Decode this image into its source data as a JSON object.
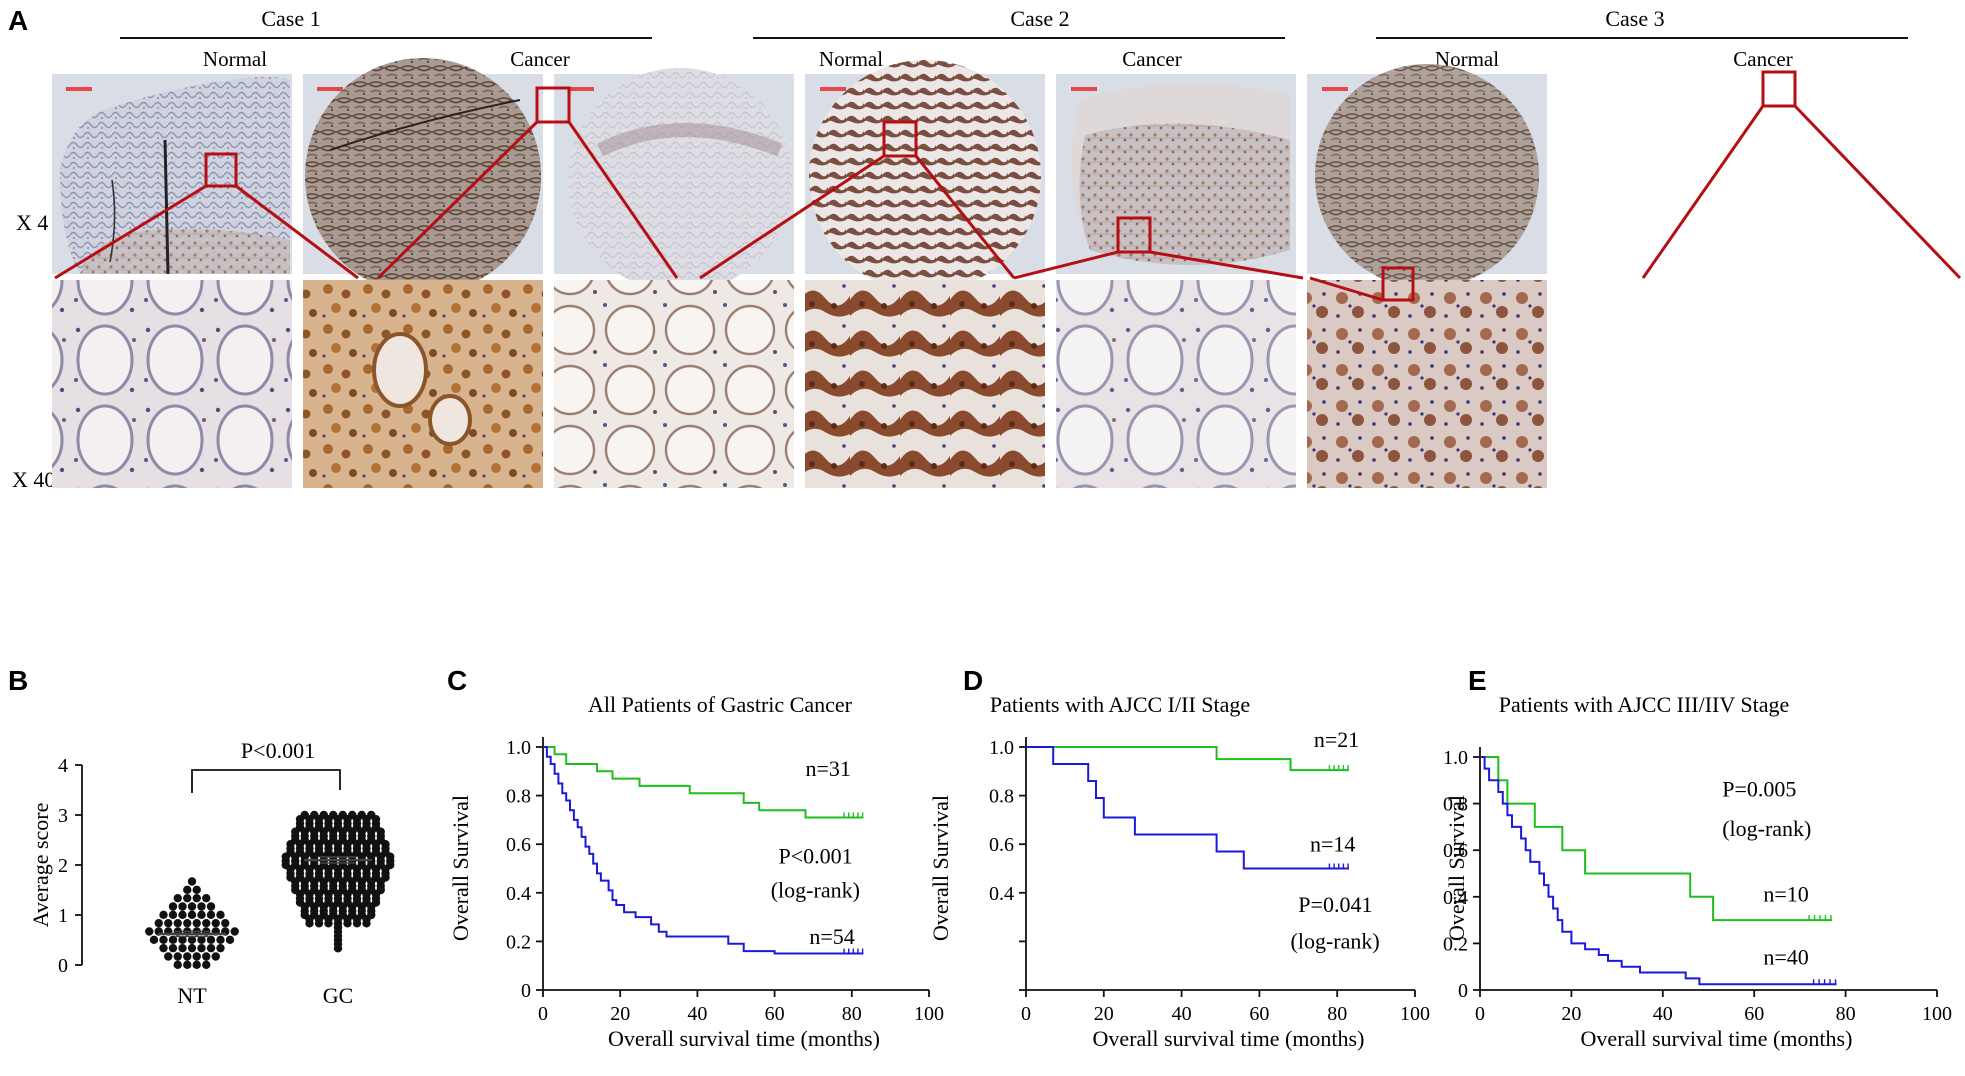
{
  "panelA": {
    "letter": "A",
    "cases": [
      {
        "title": "Case 1",
        "normal": "Normal",
        "cancer": "Cancer"
      },
      {
        "title": "Case  2",
        "normal": "Normal",
        "cancer": "Cancer"
      },
      {
        "title": "Case  3",
        "normal": "Normal",
        "cancer": "Cancer"
      }
    ],
    "mag_low": "X 4",
    "mag_high": "X 40",
    "colors": {
      "zoom_box": "#b50f14",
      "scale_bar": "#e8474a",
      "tissue_brown": "#8a5a3a",
      "tissue_blue": "#6b7a9e"
    }
  },
  "panelB": {
    "letter": "B",
    "pvalue": "P<0.001",
    "chart_data": {
      "type": "scatter",
      "categories": [
        "NT",
        "GC"
      ],
      "ylabel": "Average score",
      "ylim": [
        0,
        4
      ],
      "yticks": [
        "0",
        "1",
        "2",
        "3",
        "4"
      ],
      "mean": [
        0.62,
        2.1
      ],
      "sem": [
        0.05,
        0.06
      ],
      "NT_range": [
        0,
        1.67
      ],
      "GC_range": [
        0.33,
        3.0
      ]
    }
  },
  "survival": [
    {
      "letter": "C",
      "chart_data": {
        "type": "line",
        "title": "All Patients of Gastric Cancer",
        "xlabel": "Overall survival time (months)",
        "ylabel": "Overall Survival",
        "xlim": [
          0,
          100
        ],
        "ylim": [
          0,
          1.0
        ],
        "xticks": [
          "0",
          "20",
          "40",
          "60",
          "80",
          "100"
        ],
        "yticks": [
          "0",
          "0.2",
          "0.4",
          "0.6",
          "0.8",
          "1.0"
        ],
        "series": [
          {
            "color": "#1fbf1f",
            "label": "n=31",
            "points": [
              [
                0,
                1.0
              ],
              [
                3,
                1.0
              ],
              [
                3,
                0.97
              ],
              [
                6,
                0.97
              ],
              [
                6,
                0.93
              ],
              [
                14,
                0.93
              ],
              [
                14,
                0.9
              ],
              [
                18,
                0.9
              ],
              [
                18,
                0.87
              ],
              [
                25,
                0.87
              ],
              [
                25,
                0.84
              ],
              [
                38,
                0.84
              ],
              [
                38,
                0.81
              ],
              [
                52,
                0.81
              ],
              [
                52,
                0.77
              ],
              [
                56,
                0.77
              ],
              [
                56,
                0.74
              ],
              [
                68,
                0.74
              ],
              [
                68,
                0.71
              ],
              [
                83,
                0.71
              ]
            ]
          },
          {
            "color": "#1a1adb",
            "label": "n=54",
            "points": [
              [
                0,
                1.0
              ],
              [
                1,
                1.0
              ],
              [
                1,
                0.96
              ],
              [
                2,
                0.96
              ],
              [
                2,
                0.93
              ],
              [
                3,
                0.93
              ],
              [
                3,
                0.89
              ],
              [
                4,
                0.89
              ],
              [
                4,
                0.85
              ],
              [
                5,
                0.85
              ],
              [
                5,
                0.81
              ],
              [
                6,
                0.81
              ],
              [
                6,
                0.78
              ],
              [
                7,
                0.78
              ],
              [
                7,
                0.74
              ],
              [
                8,
                0.74
              ],
              [
                8,
                0.7
              ],
              [
                9,
                0.7
              ],
              [
                9,
                0.67
              ],
              [
                10,
                0.67
              ],
              [
                10,
                0.63
              ],
              [
                11,
                0.63
              ],
              [
                11,
                0.59
              ],
              [
                12,
                0.59
              ],
              [
                12,
                0.56
              ],
              [
                13,
                0.56
              ],
              [
                13,
                0.52
              ],
              [
                14,
                0.52
              ],
              [
                14,
                0.48
              ],
              [
                15,
                0.48
              ],
              [
                15,
                0.45
              ],
              [
                17,
                0.45
              ],
              [
                17,
                0.41
              ],
              [
                18,
                0.41
              ],
              [
                18,
                0.37
              ],
              [
                19,
                0.37
              ],
              [
                19,
                0.35
              ],
              [
                21,
                0.35
              ],
              [
                21,
                0.32
              ],
              [
                24,
                0.32
              ],
              [
                24,
                0.3
              ],
              [
                28,
                0.3
              ],
              [
                28,
                0.27
              ],
              [
                30,
                0.27
              ],
              [
                30,
                0.24
              ],
              [
                32,
                0.24
              ],
              [
                32,
                0.22
              ],
              [
                48,
                0.22
              ],
              [
                48,
                0.19
              ],
              [
                52,
                0.19
              ],
              [
                52,
                0.16
              ],
              [
                60,
                0.16
              ],
              [
                60,
                0.15
              ],
              [
                83,
                0.15
              ]
            ]
          }
        ],
        "annotations": [
          {
            "text": "n=31",
            "x": 68,
            "y": 0.88
          },
          {
            "text": "P<0.001",
            "x": 61,
            "y": 0.52
          },
          {
            "text": "(log-rank)",
            "x": 59,
            "y": 0.38
          },
          {
            "text": "n=54",
            "x": 69,
            "y": 0.19
          }
        ]
      }
    },
    {
      "letter": "D",
      "chart_data": {
        "type": "line",
        "title": "Patients with AJCC I/II Stage",
        "xlabel": "Overall survival time (months)",
        "ylabel": "Overall Survival",
        "xlim": [
          0,
          100
        ],
        "ylim": [
          0,
          1.0
        ],
        "xticks": [
          "0",
          "20",
          "40",
          "60",
          "80",
          "100"
        ],
        "yticks": [
          "0.4",
          "0.6",
          "0.8",
          "1.0"
        ],
        "series": [
          {
            "color": "#1fbf1f",
            "label": "n=21",
            "points": [
              [
                0,
                1.0
              ],
              [
                49,
                1.0
              ],
              [
                49,
                0.95
              ],
              [
                68,
                0.95
              ],
              [
                68,
                0.905
              ],
              [
                83,
                0.905
              ]
            ]
          },
          {
            "color": "#1a1adb",
            "label": "n=14",
            "points": [
              [
                0,
                1.0
              ],
              [
                7,
                1.0
              ],
              [
                7,
                0.93
              ],
              [
                16,
                0.93
              ],
              [
                16,
                0.86
              ],
              [
                18,
                0.86
              ],
              [
                18,
                0.79
              ],
              [
                20,
                0.79
              ],
              [
                20,
                0.71
              ],
              [
                28,
                0.71
              ],
              [
                28,
                0.64
              ],
              [
                49,
                0.64
              ],
              [
                49,
                0.57
              ],
              [
                56,
                0.57
              ],
              [
                56,
                0.5
              ],
              [
                83,
                0.5
              ]
            ]
          }
        ],
        "annotations": [
          {
            "text": "n=21",
            "x": 74,
            "y": 1.0
          },
          {
            "text": "n=14",
            "x": 73,
            "y": 0.57
          },
          {
            "text": "P=0.041",
            "x": 70,
            "y": 0.32
          },
          {
            "text": "(log-rank)",
            "x": 68,
            "y": 0.17
          }
        ]
      }
    },
    {
      "letter": "E",
      "chart_data": {
        "type": "line",
        "title": "Patients with AJCC III/IIV Stage",
        "xlabel": "Overall survival time (months)",
        "ylabel": "Overall Survival",
        "xlim": [
          0,
          100
        ],
        "ylim": [
          0,
          1.0
        ],
        "xticks": [
          "0",
          "20",
          "40",
          "60",
          "80",
          "100"
        ],
        "yticks": [
          "0",
          "0.2",
          "0.4",
          "0.6",
          "0.8",
          "1.0"
        ],
        "series": [
          {
            "color": "#1fbf1f",
            "label": "n=10",
            "points": [
              [
                0,
                1.0
              ],
              [
                4,
                1.0
              ],
              [
                4,
                0.9
              ],
              [
                6,
                0.9
              ],
              [
                6,
                0.8
              ],
              [
                12,
                0.8
              ],
              [
                12,
                0.7
              ],
              [
                18,
                0.7
              ],
              [
                18,
                0.6
              ],
              [
                23,
                0.6
              ],
              [
                23,
                0.5
              ],
              [
                46,
                0.5
              ],
              [
                46,
                0.4
              ],
              [
                51,
                0.4
              ],
              [
                51,
                0.3
              ],
              [
                77,
                0.3
              ]
            ]
          },
          {
            "color": "#1a1adb",
            "label": "n=40",
            "points": [
              [
                0,
                1.0
              ],
              [
                1,
                1.0
              ],
              [
                1,
                0.95
              ],
              [
                2,
                0.95
              ],
              [
                2,
                0.9
              ],
              [
                4,
                0.9
              ],
              [
                4,
                0.85
              ],
              [
                5,
                0.85
              ],
              [
                5,
                0.8
              ],
              [
                6,
                0.8
              ],
              [
                6,
                0.75
              ],
              [
                7,
                0.75
              ],
              [
                7,
                0.7
              ],
              [
                9,
                0.7
              ],
              [
                9,
                0.65
              ],
              [
                10,
                0.65
              ],
              [
                10,
                0.6
              ],
              [
                11,
                0.6
              ],
              [
                11,
                0.55
              ],
              [
                13,
                0.55
              ],
              [
                13,
                0.5
              ],
              [
                14,
                0.5
              ],
              [
                14,
                0.45
              ],
              [
                15,
                0.45
              ],
              [
                15,
                0.4
              ],
              [
                16,
                0.4
              ],
              [
                16,
                0.35
              ],
              [
                17,
                0.35
              ],
              [
                17,
                0.3
              ],
              [
                18,
                0.3
              ],
              [
                18,
                0.25
              ],
              [
                20,
                0.25
              ],
              [
                20,
                0.2
              ],
              [
                23,
                0.2
              ],
              [
                23,
                0.175
              ],
              [
                26,
                0.175
              ],
              [
                26,
                0.15
              ],
              [
                28,
                0.15
              ],
              [
                28,
                0.125
              ],
              [
                31,
                0.125
              ],
              [
                31,
                0.1
              ],
              [
                35,
                0.1
              ],
              [
                35,
                0.075
              ],
              [
                45,
                0.075
              ],
              [
                45,
                0.05
              ],
              [
                48,
                0.05
              ],
              [
                48,
                0.025
              ],
              [
                78,
                0.025
              ]
            ]
          }
        ],
        "annotations": [
          {
            "text": "P=0.005",
            "x": 53,
            "y": 0.83
          },
          {
            "text": "(log-rank)",
            "x": 53,
            "y": 0.66
          },
          {
            "text": "n=10",
            "x": 62,
            "y": 0.38
          },
          {
            "text": "n=40",
            "x": 62,
            "y": 0.11
          }
        ]
      }
    }
  ]
}
